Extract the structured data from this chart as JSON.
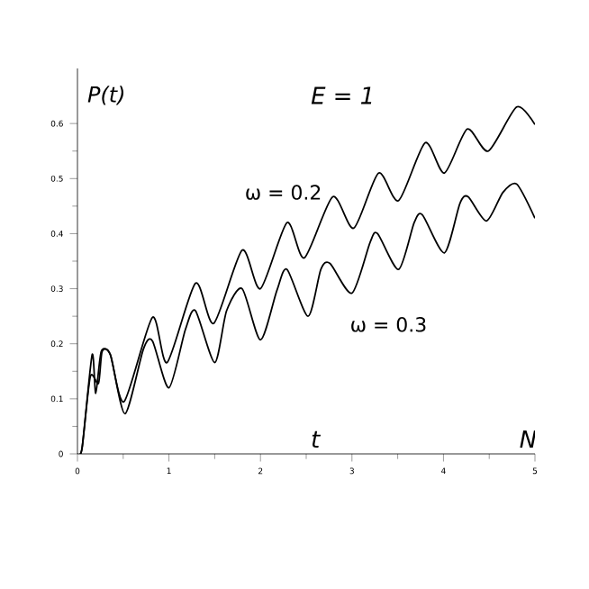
{
  "chart_data": {
    "type": "line",
    "xlabel": "t",
    "ylabel": "P(t)",
    "annotations": [
      "E = 1",
      "N"
    ],
    "xlim": [
      0,
      5
    ],
    "ylim": [
      0,
      0.7
    ],
    "xticks": [
      0,
      1,
      2,
      3,
      4,
      5
    ],
    "yticks": [
      0,
      0.1,
      0.2,
      0.3,
      0.4,
      0.5,
      0.6
    ],
    "grid": false,
    "marker": "none",
    "line_style": "solid",
    "series": [
      {
        "name": "ω = 0.2",
        "color": "#000000",
        "x": [
          0,
          0.05,
          0.16,
          0.2,
          0.26,
          0.36,
          0.51,
          0.82,
          0.98,
          1.29,
          1.49,
          1.8,
          2.0,
          2.29,
          2.48,
          2.79,
          3.02,
          3.29,
          3.51,
          3.8,
          4.01,
          4.26,
          4.49,
          4.8,
          5.0
        ],
        "values": [
          0,
          0.01,
          0.18,
          0.11,
          0.186,
          0.18,
          0.095,
          0.248,
          0.166,
          0.31,
          0.237,
          0.37,
          0.3,
          0.42,
          0.356,
          0.467,
          0.41,
          0.51,
          0.46,
          0.565,
          0.51,
          0.59,
          0.55,
          0.63,
          0.598
        ]
      },
      {
        "name": "ω = 0.3",
        "color": "#000000",
        "x": [
          0,
          0.05,
          0.14,
          0.23,
          0.27,
          0.36,
          0.52,
          0.72,
          0.82,
          1.0,
          1.18,
          1.29,
          1.5,
          1.63,
          1.8,
          2.0,
          2.18,
          2.29,
          2.52,
          2.66,
          2.76,
          3.0,
          3.2,
          3.28,
          3.51,
          3.68,
          3.77,
          4.01,
          4.18,
          4.27,
          4.47,
          4.65,
          4.8,
          5.0
        ],
        "values": [
          0,
          0.01,
          0.14,
          0.128,
          0.186,
          0.18,
          0.073,
          0.19,
          0.205,
          0.12,
          0.226,
          0.26,
          0.166,
          0.26,
          0.3,
          0.207,
          0.297,
          0.335,
          0.25,
          0.335,
          0.346,
          0.292,
          0.385,
          0.4,
          0.335,
          0.42,
          0.434,
          0.365,
          0.455,
          0.467,
          0.423,
          0.475,
          0.49,
          0.428
        ]
      }
    ]
  }
}
